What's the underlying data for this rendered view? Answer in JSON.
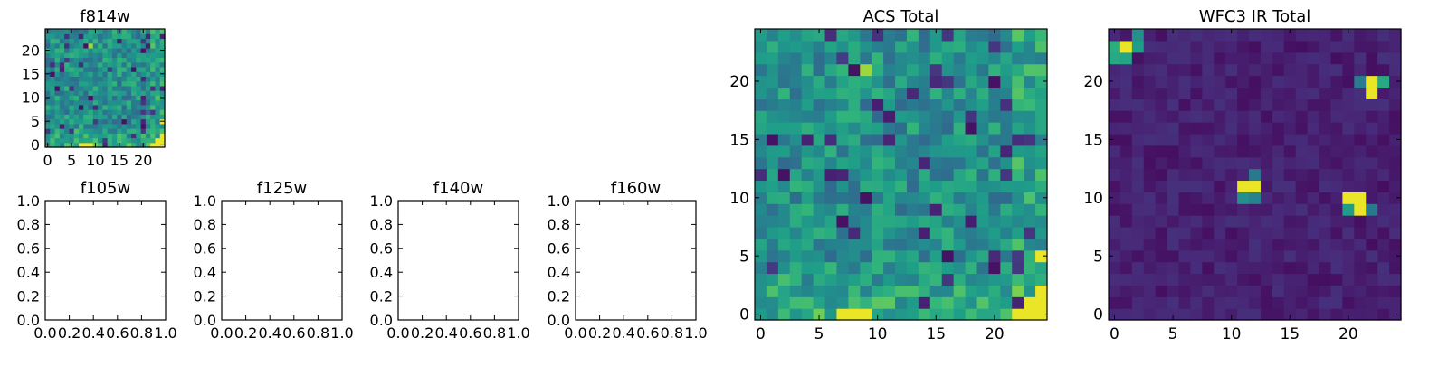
{
  "chart_data": [
    {
      "type": "heatmap",
      "title": "f814w",
      "xticks": [
        "0",
        "5",
        "10",
        "15",
        "20"
      ],
      "yticks": [
        "0",
        "5",
        "10",
        "15",
        "20"
      ],
      "xlim": [
        -0.5,
        24.5
      ],
      "ylim": [
        -0.5,
        24.5
      ],
      "grid_size": [
        25,
        25
      ],
      "colormap": "viridis",
      "pattern": "acs"
    },
    {
      "type": "empty",
      "title": "f105w",
      "xticks": [
        "0.0",
        "0.2",
        "0.4",
        "0.6",
        "0.8",
        "1.0"
      ],
      "yticks": [
        "0.0",
        "0.2",
        "0.4",
        "0.6",
        "0.8",
        "1.0"
      ],
      "xlim": [
        0,
        1
      ],
      "ylim": [
        0,
        1
      ]
    },
    {
      "type": "empty",
      "title": "f125w",
      "xticks": [
        "0.0",
        "0.2",
        "0.4",
        "0.6",
        "0.8",
        "1.0"
      ],
      "yticks": [
        "0.0",
        "0.2",
        "0.4",
        "0.6",
        "0.8",
        "1.0"
      ],
      "xlim": [
        0,
        1
      ],
      "ylim": [
        0,
        1
      ]
    },
    {
      "type": "empty",
      "title": "f140w",
      "xticks": [
        "0.0",
        "0.2",
        "0.4",
        "0.6",
        "0.8",
        "1.0"
      ],
      "yticks": [
        "0.0",
        "0.2",
        "0.4",
        "0.6",
        "0.8",
        "1.0"
      ],
      "xlim": [
        0,
        1
      ],
      "ylim": [
        0,
        1
      ]
    },
    {
      "type": "empty",
      "title": "f160w",
      "xticks": [
        "0.0",
        "0.2",
        "0.4",
        "0.6",
        "0.8",
        "1.0"
      ],
      "yticks": [
        "0.0",
        "0.2",
        "0.4",
        "0.6",
        "0.8",
        "1.0"
      ],
      "xlim": [
        0,
        1
      ],
      "ylim": [
        0,
        1
      ]
    },
    {
      "type": "heatmap",
      "title": "ACS Total",
      "xticks": [
        "0",
        "5",
        "10",
        "15",
        "20"
      ],
      "yticks": [
        "0",
        "5",
        "10",
        "15",
        "20"
      ],
      "xlim": [
        -0.5,
        24.5
      ],
      "ylim": [
        -0.5,
        24.5
      ],
      "grid_size": [
        25,
        25
      ],
      "colormap": "viridis",
      "pattern": "acs"
    },
    {
      "type": "heatmap",
      "title": "WFC3 IR Total",
      "xticks": [
        "0",
        "5",
        "10",
        "15",
        "20"
      ],
      "yticks": [
        "0",
        "5",
        "10",
        "15",
        "20"
      ],
      "xlim": [
        -0.5,
        24.5
      ],
      "ylim": [
        -0.5,
        24.5
      ],
      "grid_size": [
        25,
        25
      ],
      "colormap": "viridis",
      "pattern": "ir"
    }
  ]
}
